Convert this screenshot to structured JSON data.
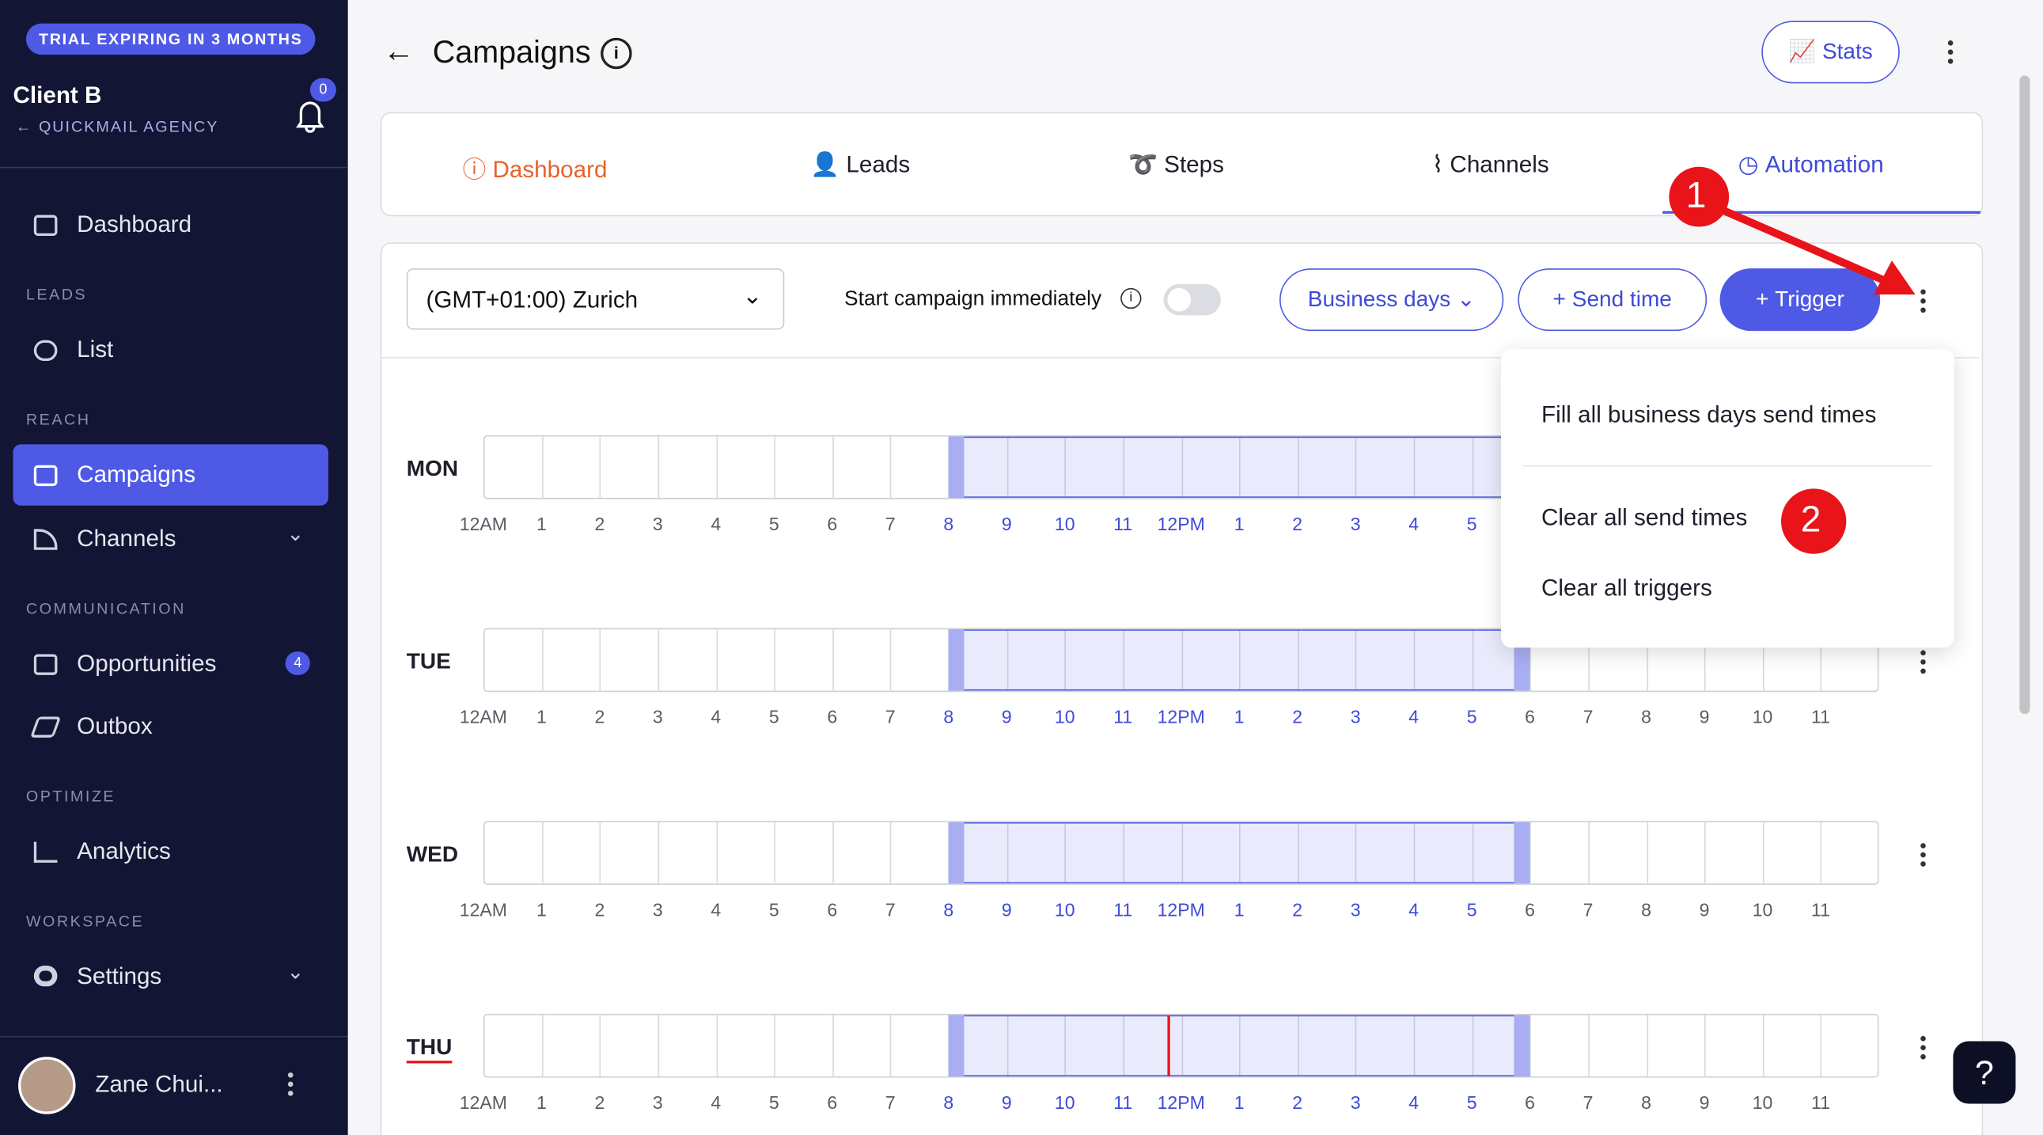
{
  "sidebar": {
    "trial_badge": "TRIAL EXPIRING IN 3 MONTHS",
    "client": "Client B",
    "agency": "QUICKMAIL AGENCY",
    "notifications": "0",
    "dashboard": "Dashboard",
    "sections": [
      {
        "title": "LEADS",
        "items": [
          "List"
        ]
      },
      {
        "title": "REACH",
        "items": [
          "Campaigns",
          "Channels"
        ]
      },
      {
        "title": "COMMUNICATION",
        "items": [
          "Opportunities",
          "Outbox"
        ]
      },
      {
        "title": "OPTIMIZE",
        "items": [
          "Analytics"
        ]
      },
      {
        "title": "WORKSPACE",
        "items": [
          "Settings"
        ]
      }
    ],
    "opportunities_badge": "4",
    "user": "Zane Chui..."
  },
  "header": {
    "title": "Campaigns",
    "stats": "Stats"
  },
  "tabs": [
    "Dashboard",
    "Leads",
    "Steps",
    "Channels",
    "Automation"
  ],
  "toolbar": {
    "timezone": "(GMT+01:00) Zurich",
    "start_label": "Start campaign immediately",
    "business_days": "Business days",
    "send_time": "Send time",
    "trigger": "Trigger"
  },
  "schedule": {
    "days": [
      "MON",
      "TUE",
      "WED",
      "THU"
    ],
    "hours": [
      "12AM",
      "1",
      "2",
      "3",
      "4",
      "5",
      "6",
      "7",
      "8",
      "9",
      "10",
      "11",
      "12PM",
      "1",
      "2",
      "3",
      "4",
      "5",
      "6",
      "7",
      "8",
      "9",
      "10",
      "11"
    ]
  },
  "menu": [
    "Fill all business days send times",
    "Clear all send times",
    "Clear all triggers"
  ],
  "annotations": [
    "1",
    "2"
  ],
  "help": "?"
}
